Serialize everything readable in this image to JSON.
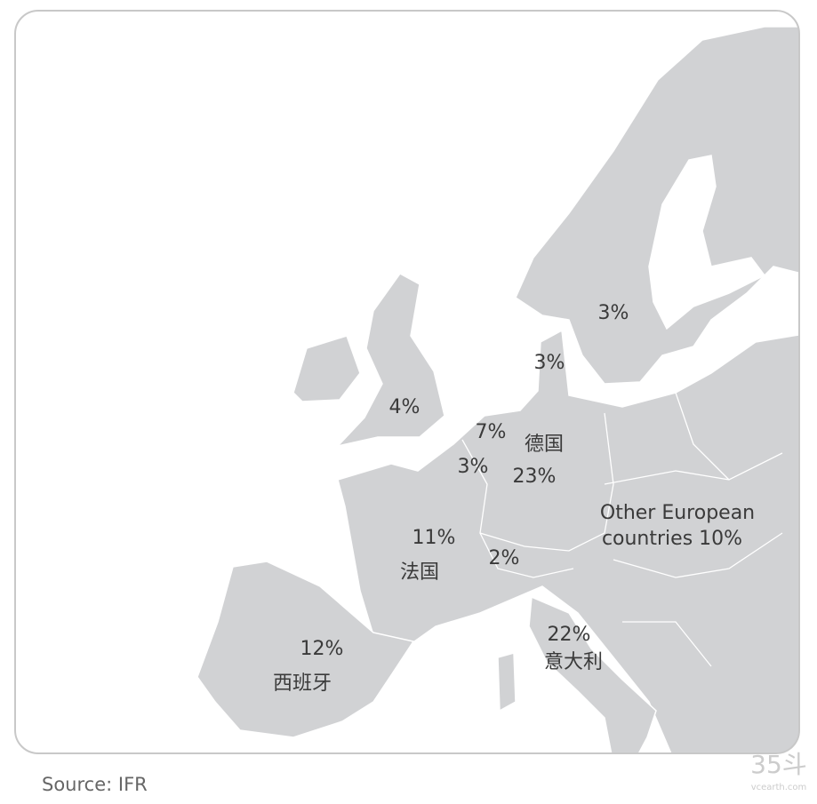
{
  "labels": [
    {
      "lines": [
        "3%"
      ]
    },
    {
      "lines": [
        "3%"
      ]
    },
    {
      "lines": [
        "4%"
      ]
    },
    {
      "lines": [
        "7%"
      ]
    },
    {
      "lines": [
        "德国"
      ]
    },
    {
      "lines": [
        "3%"
      ]
    },
    {
      "lines": [
        "23%"
      ]
    },
    {
      "lines": [
        "Other European",
        "countries 10%"
      ]
    },
    {
      "lines": [
        "11%"
      ]
    },
    {
      "lines": [
        "2%"
      ]
    },
    {
      "lines": [
        "法国"
      ]
    },
    {
      "lines": [
        "22%"
      ]
    },
    {
      "lines": [
        "意大利"
      ]
    },
    {
      "lines": [
        "12%"
      ]
    },
    {
      "lines": [
        "西班牙"
      ]
    }
  ],
  "source": "Source: IFR",
  "watermark": {
    "logo": "35斗",
    "site": "vcearth.com"
  }
}
